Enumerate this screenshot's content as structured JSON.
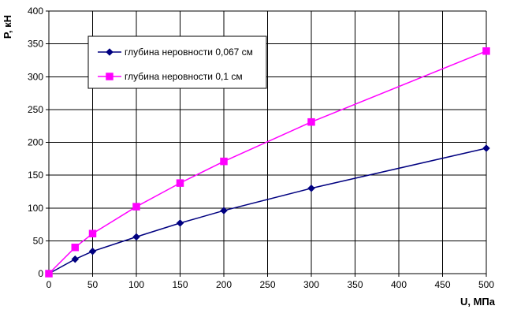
{
  "chart_data": {
    "type": "line",
    "title": "",
    "xlabel": "U, МПа",
    "ylabel": "P, кН",
    "xlim": [
      0,
      500
    ],
    "ylim": [
      0,
      400
    ],
    "xticks": [
      0,
      50,
      100,
      150,
      200,
      250,
      300,
      350,
      400,
      450,
      500
    ],
    "yticks": [
      0,
      50,
      100,
      150,
      200,
      250,
      300,
      350,
      400
    ],
    "grid": true,
    "legend_position": "top-left",
    "series": [
      {
        "name": "глубина неровности 0,067 см",
        "color": "#000080",
        "marker": "diamond",
        "x": [
          0,
          30,
          50,
          100,
          150,
          200,
          300,
          500
        ],
        "y": [
          0,
          22,
          34,
          56,
          77,
          96,
          130,
          191
        ]
      },
      {
        "name": "глубина неровности 0,1 см",
        "color": "#ff00ff",
        "marker": "square",
        "x": [
          0,
          30,
          50,
          100,
          150,
          200,
          300,
          500
        ],
        "y": [
          0,
          40,
          61,
          102,
          138,
          171,
          231,
          339
        ]
      }
    ]
  }
}
